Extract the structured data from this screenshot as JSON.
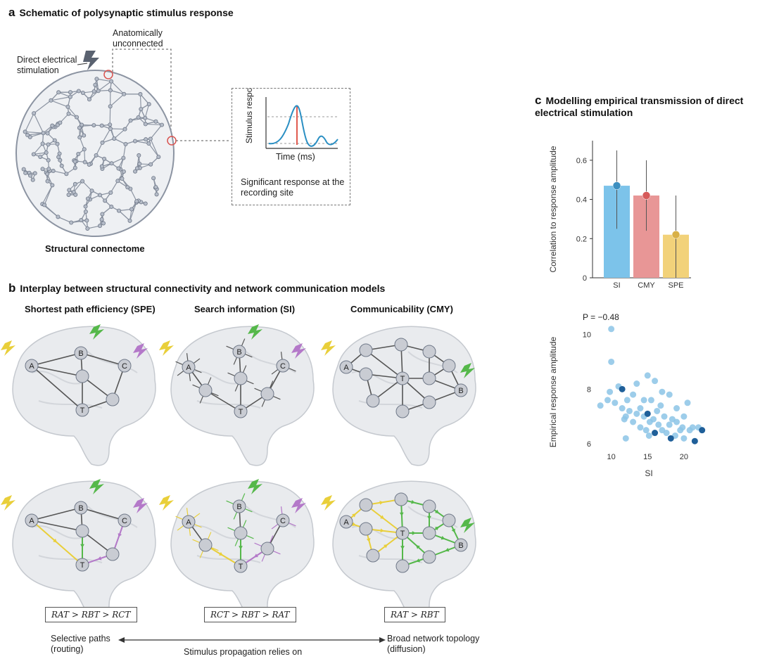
{
  "panel_a": {
    "letter": "a",
    "title": "Schematic of polysynaptic stimulus response",
    "direct_stim": "Direct electrical stimulation",
    "unconnected": "Anatomically unconnected",
    "connectome_label": "Structural connectome",
    "inset_ylabel": "Stimulus response, R",
    "inset_xlabel": "Time (ms)",
    "inset_caption": "Significant response at the recording site"
  },
  "panel_b": {
    "letter": "b",
    "title": "Interplay between structural connectivity and network communication models",
    "col_spe": "Shortest path efficiency (SPE)",
    "col_si": "Search information (SI)",
    "col_cmy": "Communicability (CMY)",
    "node_a": "A",
    "node_b": "B",
    "node_c": "C",
    "node_t": "T",
    "rank_spe": "RAT > RBT > RCT",
    "rank_si": "RCT > RBT > RAT",
    "rank_cmy": "RAT > RBT",
    "left_label": "Selective paths (routing)",
    "center_label": "Stimulus propagation relies on",
    "right_label": "Broad network topology (diffusion)"
  },
  "panel_c": {
    "letter": "c",
    "title": "Modelling empirical transmission of direct electrical stimulation"
  },
  "colors": {
    "si": "#7cc3ea",
    "cmy": "#e89696",
    "spe": "#f2d27a",
    "node": "#c9ccd3",
    "brain": "#e9ebee",
    "green": "#55b84a",
    "yellow": "#e9cf3a",
    "purple": "#b479c9"
  },
  "chart_data": [
    {
      "type": "bar",
      "categories": [
        "SI",
        "CMY",
        "SPE"
      ],
      "values": [
        0.47,
        0.42,
        0.22
      ],
      "error_low": [
        0.25,
        0.24,
        0.0
      ],
      "error_high": [
        0.65,
        0.6,
        0.42
      ],
      "ylabel": "Correlation to response amplitude",
      "xlabel": "",
      "ylim": [
        0,
        0.7
      ],
      "yticks": [
        0,
        0.2,
        0.4,
        0.6
      ],
      "ytick_labels": [
        "0",
        "0.2",
        "0.4",
        "0.6"
      ]
    },
    {
      "type": "scatter",
      "annotation": "P = −0.48",
      "xlabel": "SI",
      "ylabel": "Empirical response amplitude",
      "xlim": [
        8,
        23.5
      ],
      "ylim": [
        5.9,
        10.4
      ],
      "xticks": [
        10,
        15,
        20
      ],
      "yticks": [
        6,
        8,
        10
      ],
      "points": [
        [
          10,
          10.2
        ],
        [
          10,
          9.0
        ],
        [
          8.5,
          7.4
        ],
        [
          9.5,
          7.6
        ],
        [
          9.8,
          7.9
        ],
        [
          10.5,
          7.5
        ],
        [
          11,
          8.1
        ],
        [
          11.5,
          7.3
        ],
        [
          11.8,
          6.9
        ],
        [
          12,
          7.0
        ],
        [
          12.2,
          7.6
        ],
        [
          12.5,
          7.2
        ],
        [
          13,
          7.8
        ],
        [
          13,
          6.8
        ],
        [
          13.5,
          7.1
        ],
        [
          14,
          7.3
        ],
        [
          14,
          6.6
        ],
        [
          14.5,
          7.0
        ],
        [
          14.8,
          6.5
        ],
        [
          15,
          8.5
        ],
        [
          15,
          7.1
        ],
        [
          15.2,
          6.3
        ],
        [
          15.5,
          7.6
        ],
        [
          15.8,
          6.9
        ],
        [
          16,
          8.3
        ],
        [
          16,
          6.4
        ],
        [
          16.3,
          7.2
        ],
        [
          16.5,
          6.7
        ],
        [
          17,
          7.9
        ],
        [
          17,
          6.5
        ],
        [
          17.3,
          7.0
        ],
        [
          17.6,
          6.4
        ],
        [
          18,
          7.8
        ],
        [
          18,
          6.7
        ],
        [
          18.4,
          6.9
        ],
        [
          18.8,
          6.3
        ],
        [
          19,
          7.3
        ],
        [
          19,
          6.8
        ],
        [
          19.5,
          6.5
        ],
        [
          20,
          7.0
        ],
        [
          20,
          6.2
        ],
        [
          20.5,
          7.5
        ],
        [
          20.8,
          6.5
        ],
        [
          21.2,
          6.6
        ],
        [
          21.5,
          6.1
        ],
        [
          22,
          6.6
        ],
        [
          22.5,
          6.5
        ],
        [
          11.5,
          8.0
        ],
        [
          12,
          6.2
        ],
        [
          13.5,
          8.2
        ],
        [
          14.5,
          7.6
        ],
        [
          16.8,
          7.4
        ],
        [
          15.3,
          6.8
        ],
        [
          18.2,
          6.2
        ],
        [
          19.8,
          6.6
        ]
      ],
      "dark_points": [
        [
          15,
          7.1
        ],
        [
          16,
          6.4
        ],
        [
          21.5,
          6.1
        ],
        [
          22.5,
          6.5
        ],
        [
          11.5,
          8.0
        ],
        [
          18.2,
          6.2
        ]
      ]
    }
  ]
}
